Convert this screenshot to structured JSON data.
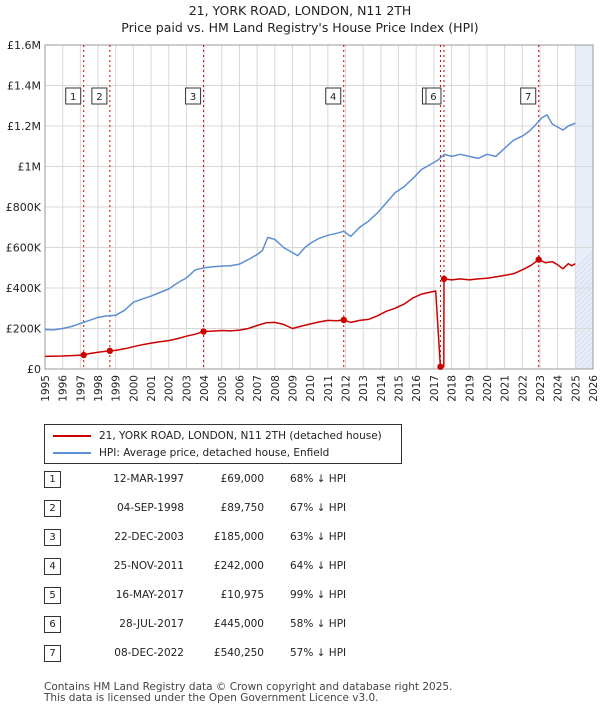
{
  "chart_data": {
    "type": "line",
    "title": "21, YORK ROAD, LONDON, N11 2TH",
    "subtitle": "Price paid vs. HM Land Registry's House Price Index (HPI)",
    "ylim": [
      0,
      1600000
    ],
    "xlim": [
      1995,
      2026
    ],
    "y_ticks": [
      "£0",
      "£200K",
      "£400K",
      "£600K",
      "£800K",
      "£1M",
      "£1.2M",
      "£1.4M",
      "£1.6M"
    ],
    "y_tick_values": [
      0,
      200000,
      400000,
      600000,
      800000,
      1000000,
      1200000,
      1400000,
      1600000
    ],
    "x_ticks": [
      "1995",
      "1996",
      "1997",
      "1998",
      "1999",
      "2000",
      "2001",
      "2002",
      "2003",
      "2004",
      "2005",
      "2006",
      "2007",
      "2008",
      "2009",
      "2010",
      "2011",
      "2012",
      "2013",
      "2014",
      "2015",
      "2016",
      "2017",
      "2018",
      "2019",
      "2020",
      "2021",
      "2022",
      "2023",
      "2024",
      "2025",
      "2026"
    ],
    "grid": true,
    "future_shading_start": 2025.0,
    "series": [
      {
        "name": "21, YORK ROAD, LONDON, N11 2TH (detached house)",
        "color": "#cc0000",
        "x": [
          1995.0,
          1996.0,
          1996.5,
          1997.19,
          1997.5,
          1998.0,
          1998.67,
          1999.0,
          1999.5,
          2000.0,
          2000.5,
          2001.0,
          2001.5,
          2002.0,
          2002.5,
          2003.0,
          2003.5,
          2003.97,
          2004.5,
          2005.0,
          2005.5,
          2006.0,
          2006.5,
          2007.0,
          2007.5,
          2008.0,
          2008.5,
          2009.0,
          2009.5,
          2010.0,
          2010.5,
          2011.0,
          2011.5,
          2011.9,
          2012.3,
          2012.8,
          2013.3,
          2013.8,
          2014.3,
          2014.8,
          2015.3,
          2015.8,
          2016.3,
          2016.8,
          2017.1,
          2017.37,
          2017.38,
          2017.56,
          2017.57,
          2018.0,
          2018.5,
          2019.0,
          2019.5,
          2020.0,
          2020.5,
          2021.0,
          2021.5,
          2022.0,
          2022.5,
          2022.93,
          2023.3,
          2023.7,
          2024.0,
          2024.3,
          2024.6,
          2024.8,
          2025.0
        ],
        "values": [
          62000,
          64000,
          66000,
          69000,
          76000,
          83000,
          89750,
          92000,
          100000,
          110000,
          120000,
          128000,
          135000,
          140000,
          150000,
          162000,
          172000,
          185000,
          187000,
          190000,
          188000,
          192000,
          200000,
          215000,
          228000,
          230000,
          220000,
          200000,
          212000,
          222000,
          232000,
          240000,
          238000,
          242000,
          230000,
          240000,
          245000,
          262000,
          285000,
          300000,
          320000,
          350000,
          370000,
          380000,
          385000,
          10975,
          10975,
          10975,
          445000,
          440000,
          445000,
          440000,
          445000,
          448000,
          455000,
          462000,
          470000,
          490000,
          512000,
          540250,
          525000,
          530000,
          515000,
          495000,
          520000,
          510000,
          520000
        ]
      },
      {
        "name": "HPI: Average price, detached house, Enfield",
        "color": "#5b8fd4",
        "x": [
          1995.0,
          1995.5,
          1996.0,
          1996.5,
          1997.0,
          1997.5,
          1998.0,
          1998.5,
          1999.0,
          1999.5,
          2000.0,
          2000.5,
          2001.0,
          2001.5,
          2002.0,
          2002.5,
          2003.0,
          2003.5,
          2004.0,
          2004.5,
          2005.0,
          2005.5,
          2006.0,
          2006.5,
          2007.0,
          2007.3,
          2007.6,
          2008.0,
          2008.5,
          2009.0,
          2009.3,
          2009.7,
          2010.0,
          2010.5,
          2011.0,
          2011.5,
          2011.9,
          2012.3,
          2012.8,
          2013.3,
          2013.8,
          2014.3,
          2014.8,
          2015.3,
          2015.8,
          2016.3,
          2016.8,
          2017.2,
          2017.6,
          2018.0,
          2018.5,
          2019.0,
          2019.5,
          2020.0,
          2020.5,
          2021.0,
          2021.5,
          2022.0,
          2022.4,
          2022.8,
          2023.1,
          2023.4,
          2023.7,
          2024.0,
          2024.3,
          2024.6,
          2024.9,
          2025.0
        ],
        "values": [
          195000,
          193000,
          200000,
          210000,
          225000,
          240000,
          255000,
          262000,
          265000,
          290000,
          330000,
          345000,
          360000,
          378000,
          395000,
          425000,
          450000,
          490000,
          500000,
          505000,
          508000,
          510000,
          518000,
          540000,
          565000,
          585000,
          650000,
          640000,
          600000,
          575000,
          560000,
          600000,
          620000,
          645000,
          660000,
          670000,
          680000,
          655000,
          700000,
          730000,
          770000,
          820000,
          870000,
          900000,
          940000,
          985000,
          1010000,
          1030000,
          1060000,
          1050000,
          1060000,
          1050000,
          1040000,
          1060000,
          1050000,
          1090000,
          1130000,
          1150000,
          1175000,
          1210000,
          1240000,
          1255000,
          1210000,
          1195000,
          1180000,
          1200000,
          1210000,
          1215000
        ]
      }
    ],
    "sales": [
      {
        "num": "1",
        "date": "12-MAR-1997",
        "price": "£69,000",
        "hpi": "68% ↓ HPI",
        "x": 1997.19,
        "value": 69000
      },
      {
        "num": "2",
        "date": "04-SEP-1998",
        "price": "£89,750",
        "hpi": "67% ↓ HPI",
        "x": 1998.67,
        "value": 89750
      },
      {
        "num": "3",
        "date": "22-DEC-2003",
        "price": "£185,000",
        "hpi": "63% ↓ HPI",
        "x": 2003.97,
        "value": 185000
      },
      {
        "num": "4",
        "date": "25-NOV-2011",
        "price": "£242,000",
        "hpi": "64% ↓ HPI",
        "x": 2011.9,
        "value": 242000
      },
      {
        "num": "5",
        "date": "16-MAY-2017",
        "price": "£10,975",
        "hpi": "99% ↓ HPI",
        "x": 2017.37,
        "value": 10975
      },
      {
        "num": "6",
        "date": "28-JUL-2017",
        "price": "£445,000",
        "hpi": "58% ↓ HPI",
        "x": 2017.57,
        "value": 445000
      },
      {
        "num": "7",
        "date": "08-DEC-2022",
        "price": "£540,250",
        "hpi": "57% ↓ HPI",
        "x": 2022.93,
        "value": 540250
      }
    ]
  },
  "legend": {
    "property_label": "21, YORK ROAD, LONDON, N11 2TH (detached house)",
    "hpi_label": "HPI: Average price, detached house, Enfield"
  },
  "footer": {
    "line1": "Contains HM Land Registry data © Crown copyright and database right 2025.",
    "line2": "This data is licensed under the Open Government Licence v3.0."
  }
}
